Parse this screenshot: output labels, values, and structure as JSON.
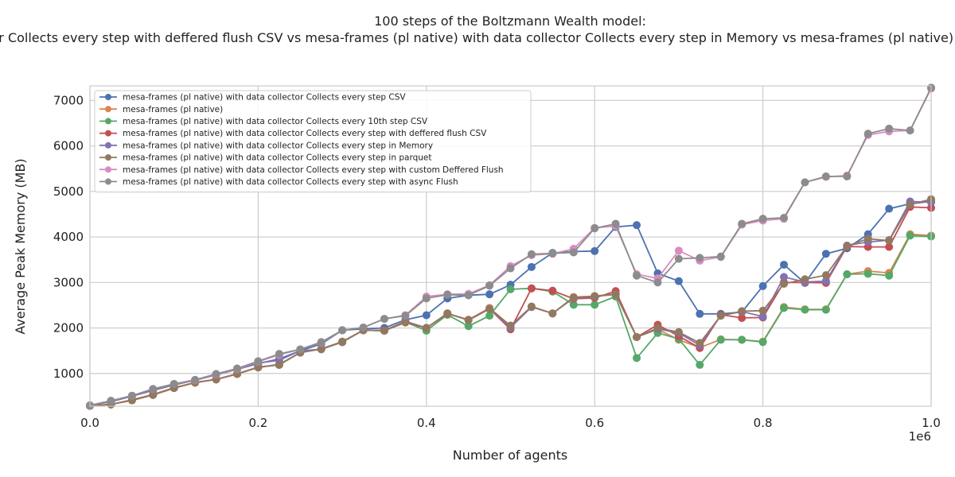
{
  "chart_data": {
    "type": "line",
    "title_line1": "100 steps of the Boltzmann Wealth model:",
    "title_line2": "mesa-frames (pl native) with data collector Collects every step CSV vs mesa-frames (pl native) vs mesa-frames (pl native) with data collector Collects every 10th step CSV vs mesa-frames (pl native) with data collector Collects every step with deffered flush CSV vs mesa-frames (pl native) with data collector Collects every step in Memory vs mesa-frames (pl native) with data collector Collects every step in parquet vs mesa-frames (pl native) with data collector Collects every step with custom Deffered Flush vs mesa-frames (pl native) with data collector Collects every step with async Flush",
    "xlabel": "Number of agents",
    "ylabel": "Average Peak Memory (MB)",
    "x_offset_text": "1e6",
    "xlim": [
      0,
      1000000
    ],
    "ylim": [
      280,
      7320
    ],
    "xticks": [
      0,
      200000,
      400000,
      600000,
      800000,
      1000000
    ],
    "xtick_labels": [
      "0.0",
      "0.2",
      "0.4",
      "0.6",
      "0.8",
      "1.0"
    ],
    "yticks": [
      1000,
      2000,
      3000,
      4000,
      5000,
      6000,
      7000
    ],
    "ytick_labels": [
      "1000",
      "2000",
      "3000",
      "4000",
      "5000",
      "6000",
      "7000"
    ],
    "grid": true,
    "legend_position": "upper-left",
    "x": [
      1,
      25000,
      50000,
      75000,
      100000,
      125000,
      150000,
      175000,
      200000,
      225000,
      250000,
      275000,
      300000,
      325000,
      350000,
      375000,
      400000,
      425000,
      450000,
      475000,
      500000,
      525000,
      550000,
      575000,
      600000,
      625000,
      650000,
      675000,
      700000,
      725000,
      750000,
      775000,
      800000,
      825000,
      850000,
      875000,
      900000,
      925000,
      950000,
      975000,
      1000000
    ],
    "series": [
      {
        "name": "mesa-frames (pl native) with data collector Collects every step CSV",
        "color": "#4c72b0",
        "values": [
          300,
          380,
          500,
          630,
          750,
          850,
          970,
          1090,
          1220,
          1320,
          1500,
          1650,
          1950,
          1980,
          2000,
          2180,
          2280,
          2650,
          2720,
          2740,
          2950,
          3340,
          3650,
          3680,
          3690,
          4220,
          4260,
          3200,
          3030,
          2310,
          2310,
          2350,
          2920,
          3390,
          2990,
          3630,
          3750,
          4060,
          4620,
          4730,
          4780
        ]
      },
      {
        "name": "mesa-frames (pl native)",
        "color": "#dd8452",
        "values": [
          290,
          320,
          420,
          540,
          690,
          800,
          870,
          990,
          1140,
          1190,
          1460,
          1540,
          1700,
          1950,
          1950,
          2150,
          2000,
          2320,
          2180,
          2440,
          2050,
          2470,
          2320,
          2680,
          2700,
          2750,
          1800,
          1970,
          1740,
          1570,
          1750,
          1740,
          1700,
          2460,
          2410,
          2410,
          3180,
          3250,
          3210,
          4060,
          4030
        ]
      },
      {
        "name": "mesa-frames (pl native) with data collector Collects every 10th step CSV",
        "color": "#55a868",
        "values": [
          290,
          320,
          410,
          530,
          680,
          800,
          870,
          990,
          1130,
          1200,
          1460,
          1540,
          1700,
          1950,
          1940,
          2130,
          1940,
          2290,
          2040,
          2270,
          2850,
          2870,
          2800,
          2510,
          2510,
          2690,
          1340,
          1890,
          1760,
          1190,
          1740,
          1740,
          1690,
          2440,
          2400,
          2400,
          3180,
          3190,
          3150,
          4030,
          4010
        ]
      },
      {
        "name": "mesa-frames (pl native) with data collector Collects every step with deffered flush CSV",
        "color": "#c44e52",
        "values": [
          290,
          320,
          420,
          530,
          680,
          800,
          870,
          990,
          1140,
          1190,
          1460,
          1540,
          1690,
          1950,
          1950,
          2130,
          2000,
          2310,
          2180,
          2420,
          1970,
          2870,
          2820,
          2640,
          2660,
          2810,
          1800,
          2070,
          1820,
          1560,
          2290,
          2220,
          2230,
          3000,
          3000,
          2990,
          3790,
          3780,
          3780,
          4660,
          4640
        ]
      },
      {
        "name": "mesa-frames (pl native) with data collector Collects every step in Memory",
        "color": "#8172b3",
        "values": [
          290,
          390,
          510,
          640,
          760,
          850,
          970,
          1100,
          1230,
          1290,
          1500,
          1530,
          1690,
          1950,
          1940,
          2140,
          2000,
          2320,
          2170,
          2420,
          2010,
          2460,
          2320,
          2660,
          2690,
          2740,
          1800,
          1980,
          1890,
          1620,
          2270,
          2360,
          2250,
          3120,
          3010,
          3030,
          3810,
          3890,
          3930,
          4780,
          4760
        ]
      },
      {
        "name": "mesa-frames (pl native) with data collector Collects every step in parquet",
        "color": "#937860",
        "values": [
          290,
          320,
          410,
          530,
          680,
          800,
          870,
          990,
          1140,
          1190,
          1460,
          1540,
          1690,
          1950,
          1940,
          2120,
          2000,
          2320,
          2170,
          2420,
          2050,
          2470,
          2320,
          2670,
          2700,
          2740,
          1800,
          2000,
          1910,
          1670,
          2270,
          2370,
          2380,
          2970,
          3070,
          3160,
          3800,
          3960,
          3920,
          4710,
          4830
        ]
      },
      {
        "name": "mesa-frames (pl native) with data collector Collects every step with custom Deffered Flush",
        "color": "#da8bc3",
        "values": [
          300,
          400,
          510,
          660,
          770,
          850,
          980,
          1100,
          1260,
          1410,
          1530,
          1680,
          1950,
          2010,
          2200,
          2280,
          2690,
          2740,
          2750,
          2940,
          3360,
          3600,
          3630,
          3740,
          4200,
          4240,
          3180,
          3090,
          3700,
          3480,
          3560,
          4270,
          4360,
          4400,
          5200,
          5320,
          5350,
          6240,
          6320,
          6340,
          7260
        ]
      },
      {
        "name": "mesa-frames (pl native) with data collector Collects every step with async Flush",
        "color": "#8c8c8c",
        "values": [
          300,
          400,
          510,
          660,
          770,
          860,
          990,
          1110,
          1270,
          1430,
          1530,
          1690,
          1950,
          2010,
          2200,
          2270,
          2650,
          2730,
          2720,
          2930,
          3310,
          3620,
          3640,
          3660,
          4190,
          4290,
          3150,
          3000,
          3520,
          3540,
          3570,
          4290,
          4400,
          4420,
          5200,
          5330,
          5330,
          6270,
          6380,
          6340,
          7280
        ]
      }
    ]
  }
}
